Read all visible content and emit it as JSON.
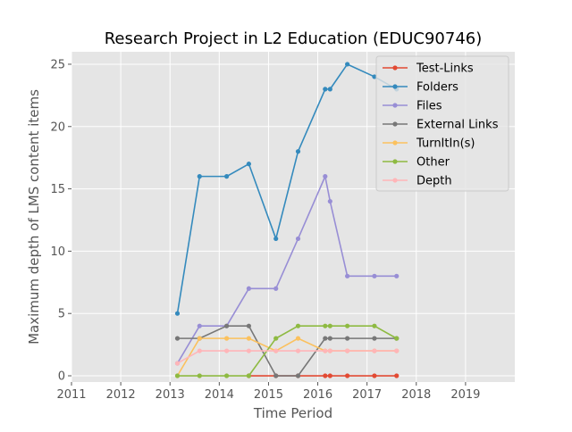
{
  "chart_data": {
    "type": "line",
    "title": "Research Project in L2 Education (EDUC90746)",
    "xlabel": "Time Period",
    "ylabel": "Maximum depth of LMS content items",
    "xlim": [
      2011.0,
      2020.0
    ],
    "ylim": [
      -0.5,
      26.0
    ],
    "x_ticks": [
      2011,
      2012,
      2013,
      2014,
      2015,
      2016,
      2017,
      2018,
      2019
    ],
    "y_ticks": [
      0,
      5,
      10,
      15,
      20,
      25
    ],
    "grid": true,
    "legend_position": "top-right",
    "x": [
      2013.15,
      2013.6,
      2014.15,
      2014.6,
      2015.15,
      2015.6,
      2016.15,
      2016.25,
      2016.6,
      2017.15,
      2017.6
    ],
    "series": [
      {
        "name": "Test-Links",
        "color": "#E24A33",
        "values": [
          null,
          null,
          null,
          0,
          0,
          0,
          0,
          0,
          0,
          0,
          0
        ]
      },
      {
        "name": "Folders",
        "color": "#348ABD",
        "values": [
          5,
          16,
          16,
          17,
          11,
          18,
          23,
          23,
          25,
          24,
          23
        ]
      },
      {
        "name": "Files",
        "color": "#988ED5",
        "values": [
          1,
          4,
          4,
          7,
          7,
          11,
          16,
          14,
          8,
          8,
          8
        ]
      },
      {
        "name": "External Links",
        "color": "#777777",
        "values": [
          3,
          3,
          4,
          4,
          0,
          0,
          3,
          3,
          3,
          3,
          3
        ]
      },
      {
        "name": "TurnItIn(s)",
        "color": "#FBC15E",
        "values": [
          0,
          3,
          3,
          3,
          2,
          3,
          2,
          2,
          2,
          2,
          2
        ]
      },
      {
        "name": "Other",
        "color": "#8EBA42",
        "values": [
          0,
          0,
          0,
          0,
          3,
          4,
          4,
          4,
          4,
          4,
          3
        ]
      },
      {
        "name": "Depth",
        "color": "#FFB5B8",
        "values": [
          1,
          2,
          2,
          2,
          2,
          2,
          2,
          2,
          2,
          2,
          2
        ]
      }
    ]
  }
}
